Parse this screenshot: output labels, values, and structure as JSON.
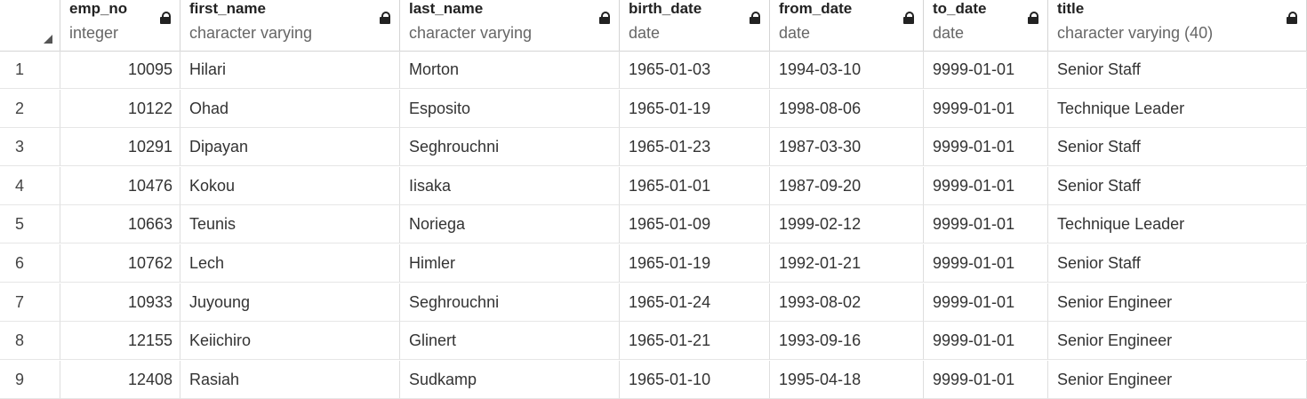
{
  "columns": [
    {
      "name": "emp_no",
      "type": "integer"
    },
    {
      "name": "first_name",
      "type": "character varying"
    },
    {
      "name": "last_name",
      "type": "character varying"
    },
    {
      "name": "birth_date",
      "type": "date"
    },
    {
      "name": "from_date",
      "type": "date"
    },
    {
      "name": "to_date",
      "type": "date"
    },
    {
      "name": "title",
      "type": "character varying (40)"
    }
  ],
  "rows": [
    {
      "idx": "1",
      "emp_no": "10095",
      "first_name": "Hilari",
      "last_name": "Morton",
      "birth_date": "1965-01-03",
      "from_date": "1994-03-10",
      "to_date": "9999-01-01",
      "title": "Senior Staff"
    },
    {
      "idx": "2",
      "emp_no": "10122",
      "first_name": "Ohad",
      "last_name": "Esposito",
      "birth_date": "1965-01-19",
      "from_date": "1998-08-06",
      "to_date": "9999-01-01",
      "title": "Technique Leader"
    },
    {
      "idx": "3",
      "emp_no": "10291",
      "first_name": "Dipayan",
      "last_name": "Seghrouchni",
      "birth_date": "1965-01-23",
      "from_date": "1987-03-30",
      "to_date": "9999-01-01",
      "title": "Senior Staff"
    },
    {
      "idx": "4",
      "emp_no": "10476",
      "first_name": "Kokou",
      "last_name": "Iisaka",
      "birth_date": "1965-01-01",
      "from_date": "1987-09-20",
      "to_date": "9999-01-01",
      "title": "Senior Staff"
    },
    {
      "idx": "5",
      "emp_no": "10663",
      "first_name": "Teunis",
      "last_name": "Noriega",
      "birth_date": "1965-01-09",
      "from_date": "1999-02-12",
      "to_date": "9999-01-01",
      "title": "Technique Leader"
    },
    {
      "idx": "6",
      "emp_no": "10762",
      "first_name": "Lech",
      "last_name": "Himler",
      "birth_date": "1965-01-19",
      "from_date": "1992-01-21",
      "to_date": "9999-01-01",
      "title": "Senior Staff"
    },
    {
      "idx": "7",
      "emp_no": "10933",
      "first_name": "Juyoung",
      "last_name": "Seghrouchni",
      "birth_date": "1965-01-24",
      "from_date": "1993-08-02",
      "to_date": "9999-01-01",
      "title": "Senior Engineer"
    },
    {
      "idx": "8",
      "emp_no": "12155",
      "first_name": "Keiichiro",
      "last_name": "Glinert",
      "birth_date": "1965-01-21",
      "from_date": "1993-09-16",
      "to_date": "9999-01-01",
      "title": "Senior Engineer"
    },
    {
      "idx": "9",
      "emp_no": "12408",
      "first_name": "Rasiah",
      "last_name": "Sudkamp",
      "birth_date": "1965-01-10",
      "from_date": "1995-04-18",
      "to_date": "9999-01-01",
      "title": "Senior Engineer"
    }
  ]
}
